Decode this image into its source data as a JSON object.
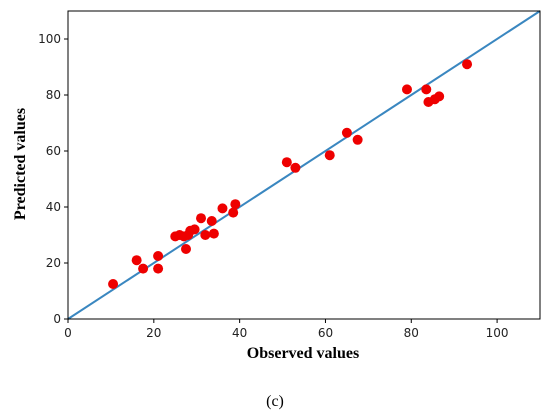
{
  "chart_data": {
    "type": "scatter",
    "xlabel": "Observed values",
    "ylabel": "Predicted values",
    "xlim": [
      0,
      110
    ],
    "ylim": [
      0,
      110
    ],
    "xticks": [
      "0",
      "20",
      "40",
      "60",
      "80",
      "100"
    ],
    "yticks": [
      "0",
      "20",
      "40",
      "60",
      "80",
      "100"
    ],
    "grid": false,
    "series": [
      {
        "kind": "scatter",
        "color": "#ee0000",
        "points": [
          {
            "x": 10.5,
            "y": 12.5
          },
          {
            "x": 16,
            "y": 21
          },
          {
            "x": 17.5,
            "y": 18
          },
          {
            "x": 21,
            "y": 22.5
          },
          {
            "x": 21,
            "y": 18
          },
          {
            "x": 25,
            "y": 29.5
          },
          {
            "x": 26,
            "y": 30
          },
          {
            "x": 27,
            "y": 29.5
          },
          {
            "x": 27.5,
            "y": 25
          },
          {
            "x": 28,
            "y": 30
          },
          {
            "x": 28.5,
            "y": 31.5
          },
          {
            "x": 29.5,
            "y": 32
          },
          {
            "x": 31,
            "y": 36
          },
          {
            "x": 32,
            "y": 30
          },
          {
            "x": 33.5,
            "y": 35
          },
          {
            "x": 34,
            "y": 30.5
          },
          {
            "x": 36,
            "y": 39.5
          },
          {
            "x": 38.5,
            "y": 38
          },
          {
            "x": 39,
            "y": 41
          },
          {
            "x": 51,
            "y": 56
          },
          {
            "x": 53,
            "y": 54
          },
          {
            "x": 61,
            "y": 58.5
          },
          {
            "x": 65,
            "y": 66.5
          },
          {
            "x": 67.5,
            "y": 64
          },
          {
            "x": 79,
            "y": 82
          },
          {
            "x": 83.5,
            "y": 82
          },
          {
            "x": 84,
            "y": 77.5
          },
          {
            "x": 85.5,
            "y": 78.5
          },
          {
            "x": 86.5,
            "y": 79.5
          },
          {
            "x": 93,
            "y": 91
          }
        ]
      },
      {
        "kind": "line",
        "color": "#3a87c0",
        "points": [
          {
            "x": 0,
            "y": 0
          },
          {
            "x": 110,
            "y": 110
          }
        ]
      }
    ],
    "caption": "(c)"
  }
}
